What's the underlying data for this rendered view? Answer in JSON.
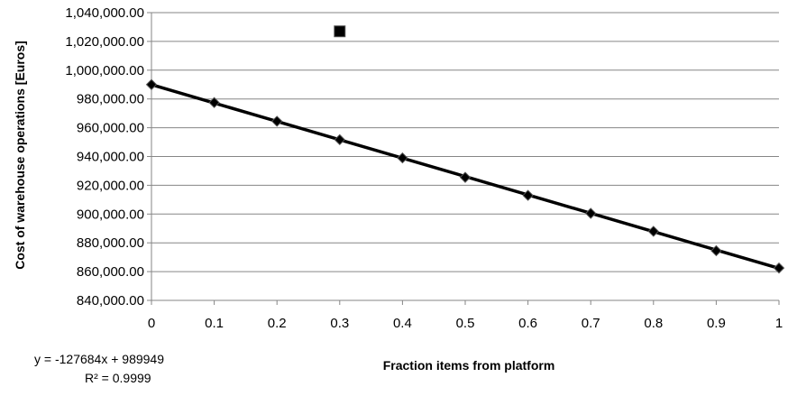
{
  "chart_data": {
    "type": "scatter",
    "xlabel": "Fraction items from platform",
    "ylabel": "Cost of warehouse operations [Euros]",
    "xlim": [
      0,
      1
    ],
    "ylim": [
      840000,
      1040000
    ],
    "x_ticks": [
      "0",
      "0.1",
      "0.2",
      "0.3",
      "0.4",
      "0.5",
      "0.6",
      "0.7",
      "0.8",
      "0.9",
      "1"
    ],
    "y_ticks": [
      "840,000.00",
      "860,000.00",
      "880,000.00",
      "900,000.00",
      "920,000.00",
      "940,000.00",
      "960,000.00",
      "980,000.00",
      "1,000,000.00",
      "1,020,000.00",
      "1,040,000.00"
    ],
    "grid": "horizontal",
    "series": [
      {
        "marker": "diamond",
        "color": "#000000",
        "x": [
          0,
          0.1,
          0.2,
          0.3,
          0.4,
          0.5,
          0.6,
          0.7,
          0.8,
          0.9,
          1
        ],
        "values": [
          990000,
          977500,
          964500,
          951700,
          939000,
          925500,
          913000,
          900500,
          888000,
          874500,
          862500
        ]
      },
      {
        "marker": "square",
        "color": "#000000",
        "x": [
          0.3
        ],
        "values": [
          1027000
        ]
      }
    ],
    "trendline": {
      "type": "linear",
      "slope": -127684,
      "intercept": 989949,
      "equation": "y = -127684x + 989949",
      "r_squared": "R² = 0.9999"
    }
  }
}
